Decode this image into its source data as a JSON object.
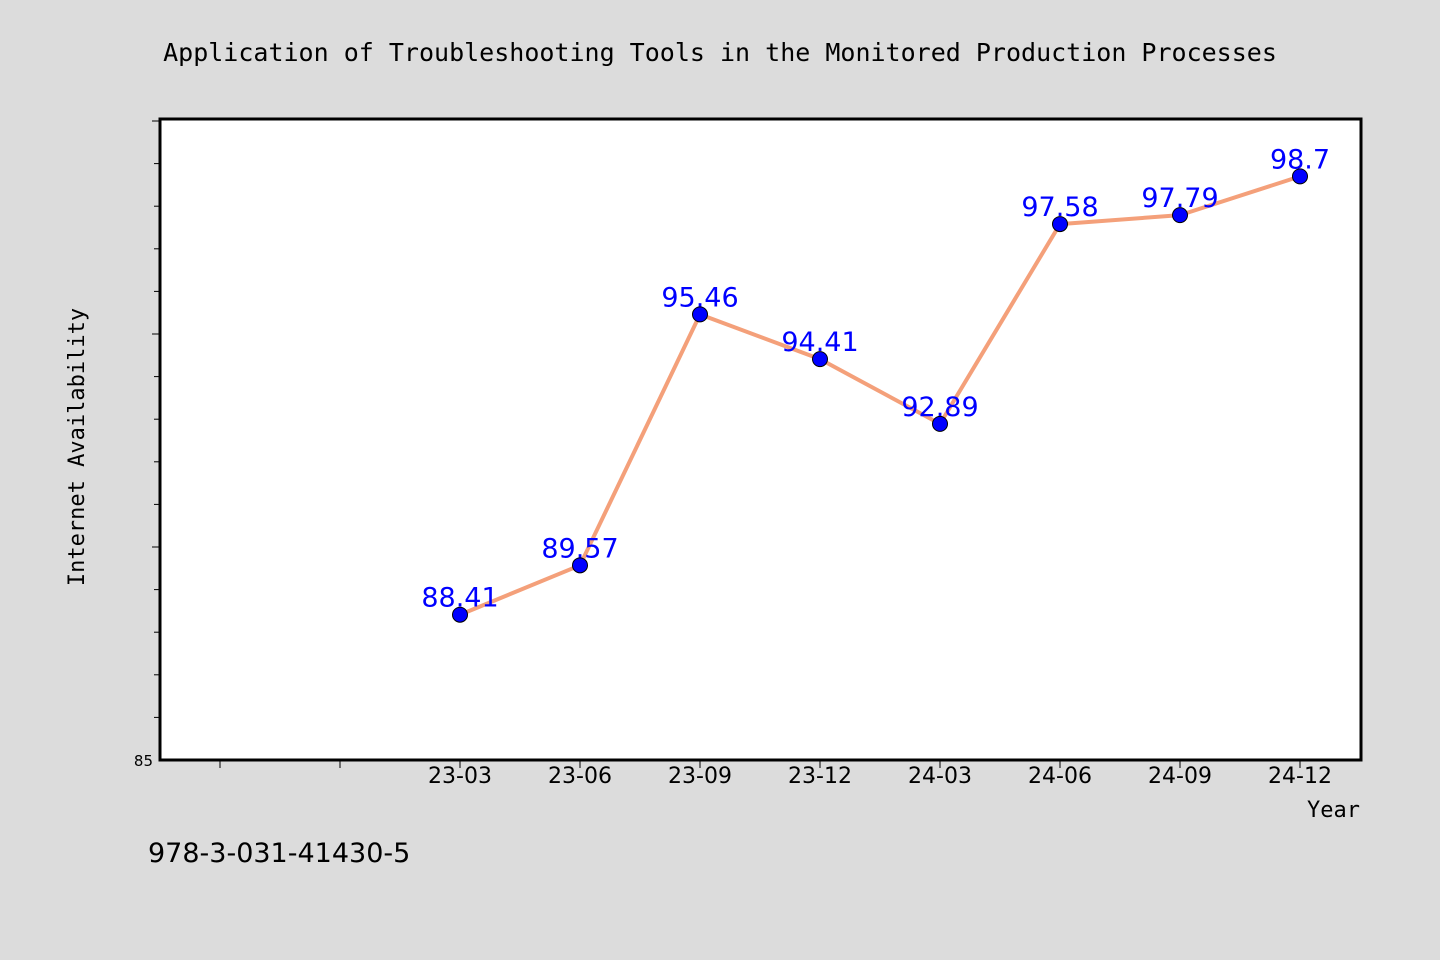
{
  "chart_data": {
    "type": "line",
    "title": "Application of Troubleshooting Tools in the Monitored Production Processes",
    "xlabel": "Year",
    "ylabel": "Internet Availability",
    "categories": [
      "23-03",
      "23-06",
      "23-09",
      "23-12",
      "24-03",
      "24-06",
      "24-09",
      "24-12"
    ],
    "series": [
      {
        "values": [
          88.41,
          89.57,
          95.46,
          94.41,
          92.89,
          97.58,
          97.79,
          98.7
        ]
      }
    ],
    "data_labels": [
      "88.41",
      "89.57",
      "95.46",
      "94.41",
      "92.89",
      "97.58",
      "97.79",
      "98.7"
    ],
    "ylim": [
      85,
      100
    ],
    "y_tick_labels": [
      "85"
    ],
    "grid": false,
    "colors": {
      "line": "#f4a07a",
      "marker": "#0000ff",
      "data_label": "#0000ff",
      "background": "#dcdcdc",
      "plot_area": "#ffffff"
    }
  },
  "footer_text": "978-3-031-41430-5"
}
